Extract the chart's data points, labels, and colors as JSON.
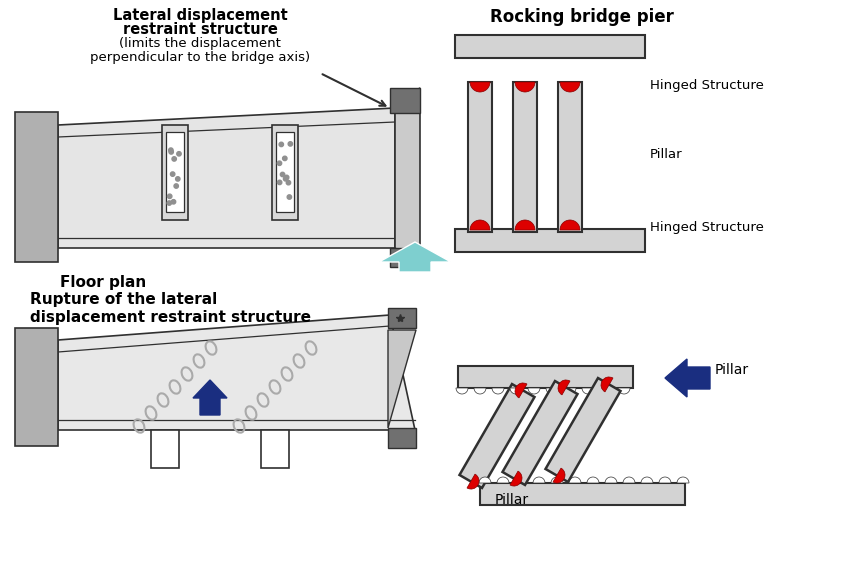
{
  "bg_color": "#ffffff",
  "light_gray": "#d3d3d3",
  "mid_gray": "#b0b0b0",
  "dark_gray": "#707070",
  "outline_color": "#303030",
  "red_color": "#dd0000",
  "blue_arrow_color": "#1a2e80",
  "teal_color": "#7ecfcf",
  "chain_color": "#aaaaaa",
  "text_color": "#000000",
  "label_tl1": "Lateral displacement",
  "label_tl2": "restraint structure",
  "label_tl3": "(limits the displacement",
  "label_tl4": "perpendicular to the bridge axis)",
  "label_floor_plan": "Floor plan",
  "label_rocking": "Rocking bridge pier",
  "label_hinged_top": "Hinged Structure",
  "label_pillar_mid": "Pillar",
  "label_hinged_bot": "Hinged Structure",
  "label_bl1": "Rupture of the lateral",
  "label_bl2": "displacement restraint structure",
  "label_pillar_rt": "Pillar",
  "label_pillar_rb": "Pillar"
}
